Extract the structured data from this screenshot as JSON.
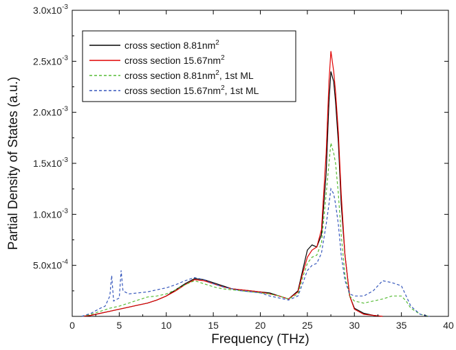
{
  "chart_data": {
    "type": "line",
    "xlabel": "Frequency (THz)",
    "ylabel": "Partial Density of States (a.u.)",
    "xlim": [
      0,
      40
    ],
    "ylim": [
      0,
      0.003
    ],
    "x_ticks": [
      0,
      5,
      10,
      15,
      20,
      25,
      30,
      35,
      40
    ],
    "x_tick_labels": [
      "0",
      "5",
      "10",
      "15",
      "20",
      "25",
      "30",
      "35",
      "40"
    ],
    "y_ticks": [
      {
        "value": 0.0005,
        "mantissa": "5.0x10",
        "exp": "-4"
      },
      {
        "value": 0.001,
        "mantissa": "1.0x10",
        "exp": "-3"
      },
      {
        "value": 0.0015,
        "mantissa": "1.5x10",
        "exp": "-3"
      },
      {
        "value": 0.002,
        "mantissa": "2.0x10",
        "exp": "-3"
      },
      {
        "value": 0.0025,
        "mantissa": "2.5x10",
        "exp": "-3"
      },
      {
        "value": 0.003,
        "mantissa": "3.0x10",
        "exp": "-3"
      }
    ],
    "grid": false,
    "legend_position": "top-left",
    "series": [
      {
        "legend_text": "cross section 8.81nm",
        "legend_sup": "2",
        "legend_suffix": "",
        "color": "#000000",
        "dash": "solid",
        "points": [
          [
            1.0,
            0.0
          ],
          [
            2.0,
            1e-05
          ],
          [
            3.0,
            3e-05
          ],
          [
            4.0,
            5e-05
          ],
          [
            5.0,
            7e-05
          ],
          [
            6.0,
            9e-05
          ],
          [
            7.0,
            0.00011
          ],
          [
            8.0,
            0.00013
          ],
          [
            9.0,
            0.00016
          ],
          [
            10.0,
            0.0002
          ],
          [
            11.0,
            0.00026
          ],
          [
            12.0,
            0.00032
          ],
          [
            13.0,
            0.00037
          ],
          [
            14.0,
            0.00036
          ],
          [
            15.0,
            0.00033
          ],
          [
            16.0,
            0.0003
          ],
          [
            17.0,
            0.00027
          ],
          [
            18.0,
            0.00026
          ],
          [
            19.0,
            0.00025
          ],
          [
            20.0,
            0.00024
          ],
          [
            21.0,
            0.00023
          ],
          [
            22.0,
            0.0002
          ],
          [
            23.0,
            0.00017
          ],
          [
            24.0,
            0.00025
          ],
          [
            24.5,
            0.00045
          ],
          [
            25.0,
            0.00065
          ],
          [
            25.5,
            0.0007
          ],
          [
            26.0,
            0.00068
          ],
          [
            26.5,
            0.0008
          ],
          [
            27.0,
            0.0014
          ],
          [
            27.3,
            0.0021
          ],
          [
            27.5,
            0.0024
          ],
          [
            27.8,
            0.0023
          ],
          [
            28.0,
            0.0021
          ],
          [
            28.3,
            0.0017
          ],
          [
            28.6,
            0.0011
          ],
          [
            29.0,
            0.0006
          ],
          [
            29.5,
            0.0002
          ],
          [
            30.0,
            8e-05
          ],
          [
            31.0,
            3e-05
          ],
          [
            32.0,
            1e-05
          ],
          [
            33.0,
            0.0
          ]
        ]
      },
      {
        "legend_text": "cross section 15.67nm",
        "legend_sup": "2",
        "legend_suffix": "",
        "color": "#e00000",
        "dash": "solid",
        "points": [
          [
            1.0,
            0.0
          ],
          [
            2.0,
            1e-05
          ],
          [
            3.0,
            3e-05
          ],
          [
            4.0,
            5e-05
          ],
          [
            5.0,
            7e-05
          ],
          [
            6.0,
            9e-05
          ],
          [
            7.0,
            0.00011
          ],
          [
            8.0,
            0.00013
          ],
          [
            9.0,
            0.00016
          ],
          [
            10.0,
            0.0002
          ],
          [
            11.0,
            0.00025
          ],
          [
            12.0,
            0.00031
          ],
          [
            13.0,
            0.00036
          ],
          [
            14.0,
            0.00035
          ],
          [
            15.0,
            0.00032
          ],
          [
            16.0,
            0.00029
          ],
          [
            17.0,
            0.00027
          ],
          [
            18.0,
            0.00026
          ],
          [
            19.0,
            0.00025
          ],
          [
            20.0,
            0.00024
          ],
          [
            21.0,
            0.00022
          ],
          [
            22.0,
            0.0002
          ],
          [
            23.0,
            0.00017
          ],
          [
            24.0,
            0.00024
          ],
          [
            24.5,
            0.00042
          ],
          [
            25.0,
            0.00058
          ],
          [
            25.5,
            0.00065
          ],
          [
            26.0,
            0.00068
          ],
          [
            26.5,
            0.00085
          ],
          [
            27.0,
            0.0016
          ],
          [
            27.3,
            0.0023
          ],
          [
            27.5,
            0.0026
          ],
          [
            27.8,
            0.0024
          ],
          [
            28.0,
            0.0022
          ],
          [
            28.3,
            0.0018
          ],
          [
            28.6,
            0.0012
          ],
          [
            29.0,
            0.0006
          ],
          [
            29.5,
            0.0002
          ],
          [
            30.0,
            7e-05
          ],
          [
            31.0,
            2e-05
          ],
          [
            32.0,
            1e-05
          ],
          [
            33.0,
            0.0
          ]
        ]
      },
      {
        "legend_text": "cross section 8.81nm",
        "legend_sup": "2",
        "legend_suffix": ", 1st ML",
        "color": "#55bb33",
        "dash": "4,3",
        "points": [
          [
            1.0,
            0.0
          ],
          [
            2.0,
            2e-05
          ],
          [
            3.0,
            5e-05
          ],
          [
            4.0,
            8e-05
          ],
          [
            5.0,
            0.0001
          ],
          [
            6.0,
            0.00013
          ],
          [
            7.0,
            0.00016
          ],
          [
            8.0,
            0.00019
          ],
          [
            9.0,
            0.0002
          ],
          [
            10.0,
            0.00022
          ],
          [
            11.0,
            0.00026
          ],
          [
            12.0,
            0.00031
          ],
          [
            13.0,
            0.00035
          ],
          [
            14.0,
            0.00032
          ],
          [
            15.0,
            0.00029
          ],
          [
            16.0,
            0.00027
          ],
          [
            17.0,
            0.00026
          ],
          [
            18.0,
            0.00025
          ],
          [
            19.0,
            0.00024
          ],
          [
            20.0,
            0.00023
          ],
          [
            21.0,
            0.00022
          ],
          [
            22.0,
            0.0002
          ],
          [
            23.0,
            0.00017
          ],
          [
            24.0,
            0.00022
          ],
          [
            24.5,
            0.00038
          ],
          [
            25.0,
            0.00052
          ],
          [
            25.5,
            0.00058
          ],
          [
            26.0,
            0.0006
          ],
          [
            26.5,
            0.00072
          ],
          [
            27.0,
            0.0012
          ],
          [
            27.3,
            0.0015
          ],
          [
            27.5,
            0.0017
          ],
          [
            27.8,
            0.0016
          ],
          [
            28.0,
            0.0015
          ],
          [
            28.3,
            0.0012
          ],
          [
            28.6,
            0.0008
          ],
          [
            29.0,
            0.0004
          ],
          [
            29.5,
            0.0002
          ],
          [
            30.0,
            0.00015
          ],
          [
            31.0,
            0.00013
          ],
          [
            32.0,
            0.00015
          ],
          [
            33.0,
            0.00017
          ],
          [
            34.0,
            0.0002
          ],
          [
            35.0,
            0.0002
          ],
          [
            35.5,
            0.00015
          ],
          [
            36.0,
            8e-05
          ],
          [
            37.0,
            2e-05
          ],
          [
            38.0,
            0.0
          ]
        ]
      },
      {
        "legend_text": "cross section 15.67nm",
        "legend_sup": "2",
        "legend_suffix": ", 1st ML",
        "color": "#3355bb",
        "dash": "4,3",
        "points": [
          [
            1.0,
            0.0
          ],
          [
            2.0,
            3e-05
          ],
          [
            3.0,
            8e-05
          ],
          [
            3.5,
            0.0001
          ],
          [
            4.0,
            0.0002
          ],
          [
            4.2,
            0.0004
          ],
          [
            4.4,
            0.00015
          ],
          [
            5.0,
            0.00018
          ],
          [
            5.2,
            0.00045
          ],
          [
            5.4,
            0.00025
          ],
          [
            6.0,
            0.00022
          ],
          [
            7.0,
            0.00023
          ],
          [
            8.0,
            0.00024
          ],
          [
            9.0,
            0.00026
          ],
          [
            10.0,
            0.00028
          ],
          [
            11.0,
            0.00031
          ],
          [
            12.0,
            0.00035
          ],
          [
            13.0,
            0.00038
          ],
          [
            14.0,
            0.00036
          ],
          [
            15.0,
            0.00032
          ],
          [
            16.0,
            0.00029
          ],
          [
            17.0,
            0.00027
          ],
          [
            18.0,
            0.00025
          ],
          [
            19.0,
            0.00024
          ],
          [
            20.0,
            0.00023
          ],
          [
            21.0,
            0.0002
          ],
          [
            22.0,
            0.00018
          ],
          [
            23.0,
            0.00016
          ],
          [
            24.0,
            0.0002
          ],
          [
            24.5,
            0.00032
          ],
          [
            25.0,
            0.00045
          ],
          [
            25.5,
            0.0005
          ],
          [
            26.0,
            0.00052
          ],
          [
            26.5,
            0.00062
          ],
          [
            27.0,
            0.0009
          ],
          [
            27.3,
            0.0011
          ],
          [
            27.5,
            0.00125
          ],
          [
            27.8,
            0.0012
          ],
          [
            28.0,
            0.0011
          ],
          [
            28.3,
            0.0009
          ],
          [
            28.6,
            0.0006
          ],
          [
            29.0,
            0.00035
          ],
          [
            29.5,
            0.00022
          ],
          [
            30.0,
            0.0002
          ],
          [
            31.0,
            0.0002
          ],
          [
            32.0,
            0.00025
          ],
          [
            33.0,
            0.00035
          ],
          [
            34.0,
            0.00033
          ],
          [
            35.0,
            0.0003
          ],
          [
            35.5,
            0.0002
          ],
          [
            36.0,
            0.0001
          ],
          [
            37.0,
            2e-05
          ],
          [
            38.0,
            0.0
          ]
        ]
      }
    ]
  }
}
